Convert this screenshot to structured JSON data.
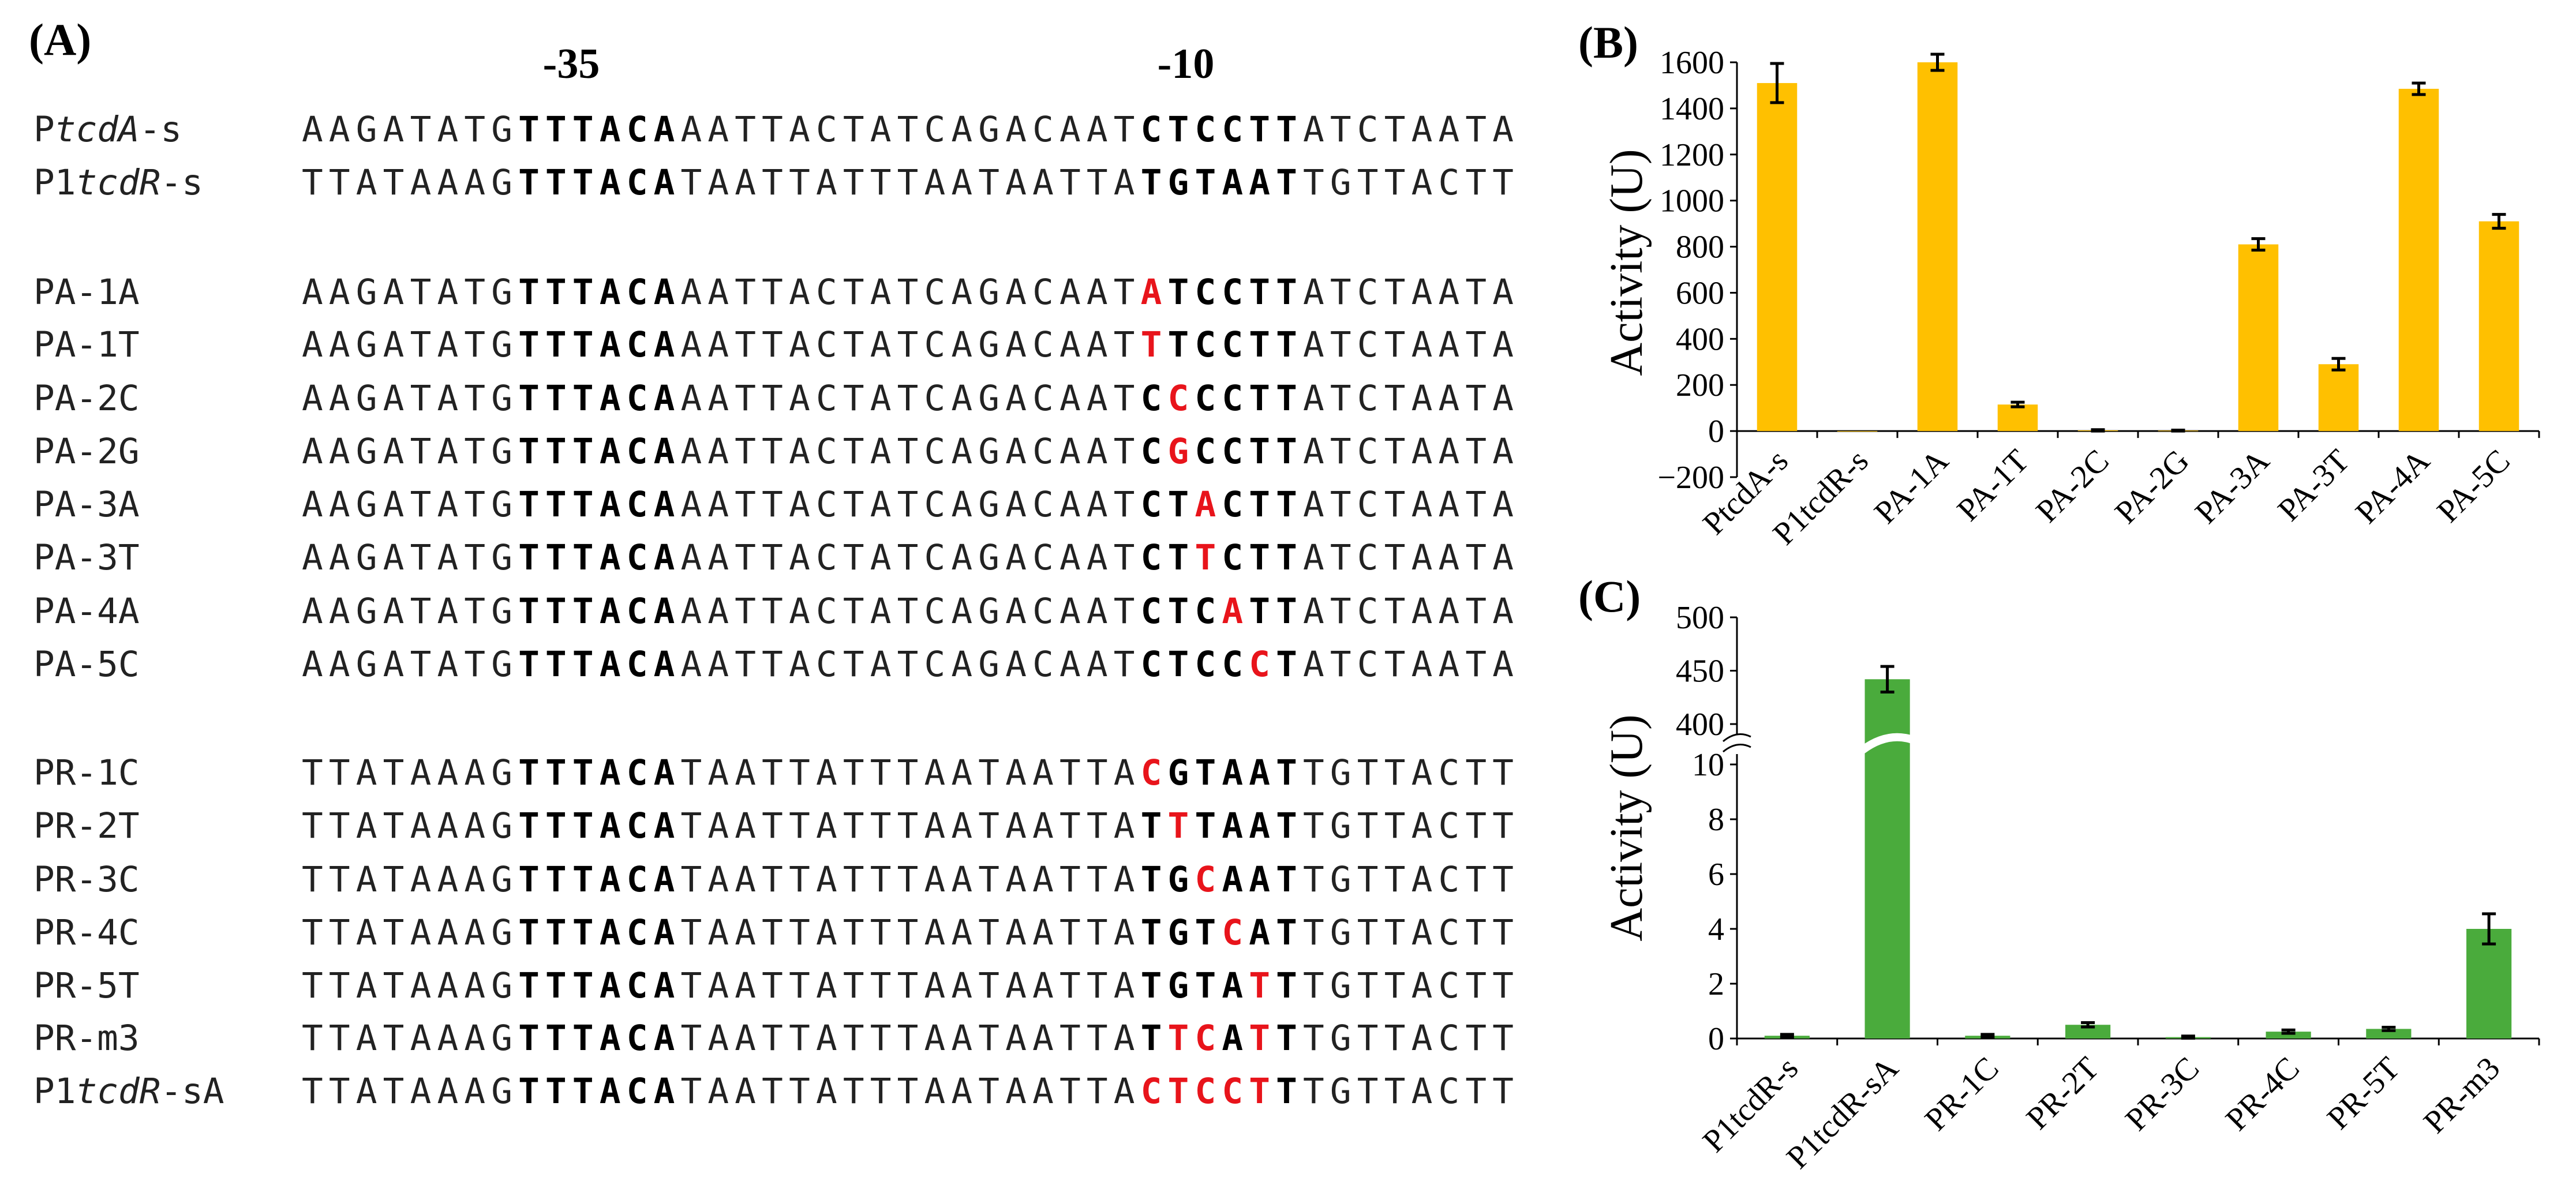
{
  "panel_a": {
    "label": "(A)",
    "box_minus35": "-35",
    "box_minus10": "-10",
    "rows": [
      {
        "name": [
          {
            "t": "P"
          },
          {
            "t": "tcdA",
            "i": true
          },
          {
            "t": "-s"
          }
        ],
        "seq": [
          {
            "t": "AAGATATG"
          },
          {
            "t": "TTTACA",
            "s": "b"
          },
          {
            "t": "AATTACTATCAGACAAT"
          },
          {
            "t": "CTCCTT",
            "s": "b"
          },
          {
            "t": "ATCTAATA"
          }
        ]
      },
      {
        "name": [
          {
            "t": "P1"
          },
          {
            "t": "tcdR",
            "i": true
          },
          {
            "t": "-s"
          }
        ],
        "seq": [
          {
            "t": "TTATAAAG"
          },
          {
            "t": "TTTACA",
            "s": "b"
          },
          {
            "t": "TAATTATTTAATAATTA"
          },
          {
            "t": "TGTAAT",
            "s": "b"
          },
          {
            "t": "TGTTACTT"
          }
        ]
      },
      {
        "name": [
          {
            "t": "PA-1A"
          }
        ],
        "seq": [
          {
            "t": "AAGATATG"
          },
          {
            "t": "TTTACA",
            "s": "b"
          },
          {
            "t": "AATTACTATCAGACAAT"
          },
          {
            "t": "A",
            "s": "r"
          },
          {
            "t": "TCCTT",
            "s": "b"
          },
          {
            "t": "ATCTAATA"
          }
        ]
      },
      {
        "name": [
          {
            "t": "PA-1T"
          }
        ],
        "seq": [
          {
            "t": "AAGATATG"
          },
          {
            "t": "TTTACA",
            "s": "b"
          },
          {
            "t": "AATTACTATCAGACAAT"
          },
          {
            "t": "T",
            "s": "r"
          },
          {
            "t": "TCCTT",
            "s": "b"
          },
          {
            "t": "ATCTAATA"
          }
        ]
      },
      {
        "name": [
          {
            "t": "PA-2C"
          }
        ],
        "seq": [
          {
            "t": "AAGATATG"
          },
          {
            "t": "TTTACA",
            "s": "b"
          },
          {
            "t": "AATTACTATCAGACAAT"
          },
          {
            "t": "C",
            "s": "b"
          },
          {
            "t": "C",
            "s": "r"
          },
          {
            "t": "CCTT",
            "s": "b"
          },
          {
            "t": "ATCTAATA"
          }
        ]
      },
      {
        "name": [
          {
            "t": "PA-2G"
          }
        ],
        "seq": [
          {
            "t": "AAGATATG"
          },
          {
            "t": "TTTACA",
            "s": "b"
          },
          {
            "t": "AATTACTATCAGACAAT"
          },
          {
            "t": "C",
            "s": "b"
          },
          {
            "t": "G",
            "s": "r"
          },
          {
            "t": "CCTT",
            "s": "b"
          },
          {
            "t": "ATCTAATA"
          }
        ]
      },
      {
        "name": [
          {
            "t": "PA-3A"
          }
        ],
        "seq": [
          {
            "t": "AAGATATG"
          },
          {
            "t": "TTTACA",
            "s": "b"
          },
          {
            "t": "AATTACTATCAGACAAT"
          },
          {
            "t": "CT",
            "s": "b"
          },
          {
            "t": "A",
            "s": "r"
          },
          {
            "t": "CTT",
            "s": "b"
          },
          {
            "t": "ATCTAATA"
          }
        ]
      },
      {
        "name": [
          {
            "t": "PA-3T"
          }
        ],
        "seq": [
          {
            "t": "AAGATATG"
          },
          {
            "t": "TTTACA",
            "s": "b"
          },
          {
            "t": "AATTACTATCAGACAAT"
          },
          {
            "t": "CT",
            "s": "b"
          },
          {
            "t": "T",
            "s": "r"
          },
          {
            "t": "CTT",
            "s": "b"
          },
          {
            "t": "ATCTAATA"
          }
        ]
      },
      {
        "name": [
          {
            "t": "PA-4A"
          }
        ],
        "seq": [
          {
            "t": "AAGATATG"
          },
          {
            "t": "TTTACA",
            "s": "b"
          },
          {
            "t": "AATTACTATCAGACAAT"
          },
          {
            "t": "CTC",
            "s": "b"
          },
          {
            "t": "A",
            "s": "r"
          },
          {
            "t": "TT",
            "s": "b"
          },
          {
            "t": "ATCTAATA"
          }
        ]
      },
      {
        "name": [
          {
            "t": "PA-5C"
          }
        ],
        "seq": [
          {
            "t": "AAGATATG"
          },
          {
            "t": "TTTACA",
            "s": "b"
          },
          {
            "t": "AATTACTATCAGACAAT"
          },
          {
            "t": "CTCC",
            "s": "b"
          },
          {
            "t": "C",
            "s": "r"
          },
          {
            "t": "T",
            "s": "b"
          },
          {
            "t": "ATCTAATA"
          }
        ]
      },
      {
        "name": [
          {
            "t": "PR-1C"
          }
        ],
        "seq": [
          {
            "t": "TTATAAAG"
          },
          {
            "t": "TTTACA",
            "s": "b"
          },
          {
            "t": "TAATTATTTAATAATTA"
          },
          {
            "t": "C",
            "s": "r"
          },
          {
            "t": "GTAAT",
            "s": "b"
          },
          {
            "t": "TGTTACTT"
          }
        ]
      },
      {
        "name": [
          {
            "t": "PR-2T"
          }
        ],
        "seq": [
          {
            "t": "TTATAAAG"
          },
          {
            "t": "TTTACA",
            "s": "b"
          },
          {
            "t": "TAATTATTTAATAATTA"
          },
          {
            "t": "T",
            "s": "b"
          },
          {
            "t": "T",
            "s": "r"
          },
          {
            "t": "TAAT",
            "s": "b"
          },
          {
            "t": "TGTTACTT"
          }
        ]
      },
      {
        "name": [
          {
            "t": "PR-3C"
          }
        ],
        "seq": [
          {
            "t": "TTATAAAG"
          },
          {
            "t": "TTTACA",
            "s": "b"
          },
          {
            "t": "TAATTATTTAATAATTA"
          },
          {
            "t": "TG",
            "s": "b"
          },
          {
            "t": "C",
            "s": "r"
          },
          {
            "t": "AAT",
            "s": "b"
          },
          {
            "t": "TGTTACTT"
          }
        ]
      },
      {
        "name": [
          {
            "t": "PR-4C"
          }
        ],
        "seq": [
          {
            "t": "TTATAAAG"
          },
          {
            "t": "TTTACA",
            "s": "b"
          },
          {
            "t": "TAATTATTTAATAATTA"
          },
          {
            "t": "TGT",
            "s": "b"
          },
          {
            "t": "C",
            "s": "r"
          },
          {
            "t": "AT",
            "s": "b"
          },
          {
            "t": "TGTTACTT"
          }
        ]
      },
      {
        "name": [
          {
            "t": "PR-5T"
          }
        ],
        "seq": [
          {
            "t": "TTATAAAG"
          },
          {
            "t": "TTTACA",
            "s": "b"
          },
          {
            "t": "TAATTATTTAATAATTA"
          },
          {
            "t": "TGTA",
            "s": "b"
          },
          {
            "t": "T",
            "s": "r"
          },
          {
            "t": "T",
            "s": "b"
          },
          {
            "t": "TGTTACTT"
          }
        ]
      },
      {
        "name": [
          {
            "t": "PR-m3"
          }
        ],
        "seq": [
          {
            "t": "TTATAAAG"
          },
          {
            "t": "TTTACA",
            "s": "b"
          },
          {
            "t": "TAATTATTTAATAATTA"
          },
          {
            "t": "T",
            "s": "b"
          },
          {
            "t": "TC",
            "s": "r"
          },
          {
            "t": "A",
            "s": "b"
          },
          {
            "t": "T",
            "s": "r"
          },
          {
            "t": "T",
            "s": "b"
          },
          {
            "t": "TGTTACTT"
          }
        ]
      },
      {
        "name": [
          {
            "t": "P1"
          },
          {
            "t": "tcdR",
            "i": true
          },
          {
            "t": "-sA"
          }
        ],
        "seq": [
          {
            "t": "TTATAAAG"
          },
          {
            "t": "TTTACA",
            "s": "b"
          },
          {
            "t": "TAATTATTTAATAATTA"
          },
          {
            "t": "CTCCT",
            "s": "r"
          },
          {
            "t": "T",
            "s": "b"
          },
          {
            "t": "TGTTACTT"
          }
        ]
      }
    ]
  },
  "chart_data": [
    {
      "panel": "(B)",
      "type": "bar",
      "title": "",
      "xlabel": "",
      "ylabel": "Activity (U)",
      "ylim": [
        -200,
        1600
      ],
      "yticks": [
        -200,
        0,
        200,
        400,
        600,
        800,
        1000,
        1200,
        1400,
        1600
      ],
      "ytick_labels": [
        "−200",
        "0",
        "200",
        "400",
        "600",
        "800",
        "1000",
        "1200",
        "1400",
        "1600"
      ],
      "bar_color": "#ffc000",
      "categories": [
        "PtcdA-s",
        "P1tcdR-s",
        "PA-1A",
        "PA-1T",
        "PA-2C",
        "PA-2G",
        "PA-3A",
        "PA-3T",
        "PA-4A",
        "PA-5C"
      ],
      "values": [
        1510,
        0,
        1600,
        115,
        3,
        2,
        810,
        290,
        1485,
        910
      ],
      "errors": [
        85,
        0,
        35,
        10,
        3,
        2,
        25,
        25,
        25,
        30
      ]
    },
    {
      "panel": "(C)",
      "type": "bar",
      "title": "",
      "xlabel": "",
      "ylabel": "Activity (U)",
      "broken_axis": true,
      "lower_ylim": [
        0,
        10
      ],
      "upper_ylim": [
        400,
        500
      ],
      "lower_yticks": [
        0,
        2,
        4,
        6,
        8,
        10
      ],
      "upper_yticks": [
        400,
        450,
        500
      ],
      "bar_color": "#4aab3c",
      "categories": [
        "P1tcdR-s",
        "P1tcdR-sA",
        "PR-1C",
        "PR-2T",
        "PR-3C",
        "PR-4C",
        "PR-5T",
        "PR-m3"
      ],
      "values": [
        0.1,
        442,
        0.1,
        0.5,
        0.05,
        0.25,
        0.35,
        4.0
      ],
      "errors": [
        0.05,
        12,
        0.05,
        0.08,
        0.04,
        0.06,
        0.06,
        0.55
      ]
    }
  ]
}
